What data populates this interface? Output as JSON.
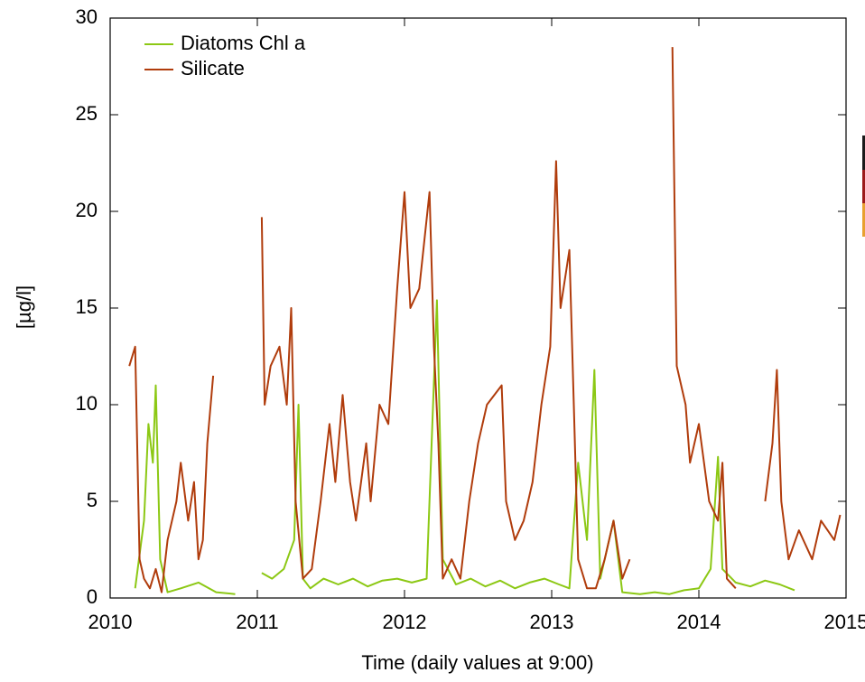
{
  "chart_data": {
    "type": "line",
    "xlabel": "Time (daily values at 9:00)",
    "ylabel": "[µg/l]",
    "xlim": [
      2010,
      2015
    ],
    "xticks": [
      2010,
      2011,
      2012,
      2013,
      2014,
      2015
    ],
    "ylim": [
      0,
      30
    ],
    "yticks": [
      0,
      5,
      10,
      15,
      20,
      25,
      30
    ],
    "legend": "top-left",
    "series": [
      {
        "name": "Diatoms Chl a",
        "color": "#8cc814",
        "x": [
          2010.17,
          2010.23,
          2010.26,
          2010.29,
          2010.31,
          2010.34,
          2010.39,
          2010.48,
          2010.6,
          2010.72,
          2010.85,
          2010.95,
          2011.03,
          2011.1,
          2011.18,
          2011.25,
          2011.28,
          2011.31,
          2011.36,
          2011.45,
          2011.55,
          2011.65,
          2011.75,
          2011.85,
          2011.95,
          2012.05,
          2012.15,
          2012.22,
          2012.26,
          2012.35,
          2012.45,
          2012.55,
          2012.65,
          2012.75,
          2012.85,
          2012.95,
          2013.05,
          2013.12,
          2013.18,
          2013.24,
          2013.29,
          2013.33,
          2013.42,
          2013.48,
          2013.6,
          2013.7,
          2013.8,
          2013.9,
          2014.0,
          2014.08,
          2014.13,
          2014.16,
          2014.25,
          2014.35,
          2014.45,
          2014.55,
          2014.65
        ],
        "values": [
          0.5,
          4,
          9,
          7,
          11,
          2,
          0.3,
          0.5,
          0.8,
          0.3,
          0.2,
          null,
          1.3,
          1,
          1.5,
          3,
          10,
          1,
          0.5,
          1,
          0.7,
          1,
          0.6,
          0.9,
          1,
          0.8,
          1,
          15.4,
          2,
          0.7,
          1,
          0.6,
          0.9,
          0.5,
          0.8,
          1,
          0.7,
          0.5,
          7,
          3,
          11.8,
          1,
          4,
          0.3,
          0.2,
          0.3,
          0.2,
          0.4,
          0.5,
          1.5,
          7.3,
          1.5,
          0.8,
          0.6,
          0.9,
          0.7,
          0.4
        ]
      },
      {
        "name": "Silicate",
        "color": "#b03c0c",
        "x": [
          2010.13,
          2010.17,
          2010.2,
          2010.23,
          2010.27,
          2010.31,
          2010.35,
          2010.39,
          2010.45,
          2010.48,
          2010.53,
          2010.57,
          2010.6,
          2010.63,
          2010.66,
          2010.7,
          2010.85,
          2011.03,
          2011.05,
          2011.09,
          2011.15,
          2011.2,
          2011.23,
          2011.26,
          2011.31,
          2011.37,
          2011.43,
          2011.49,
          2011.53,
          2011.58,
          2011.63,
          2011.67,
          2011.74,
          2011.77,
          2011.83,
          2011.89,
          2011.95,
          2012.0,
          2012.04,
          2012.1,
          2012.17,
          2012.2,
          2012.23,
          2012.26,
          2012.32,
          2012.38,
          2012.44,
          2012.5,
          2012.56,
          2012.66,
          2012.69,
          2012.75,
          2012.81,
          2012.87,
          2012.93,
          2012.99,
          2013.03,
          2013.06,
          2013.12,
          2013.15,
          2013.18,
          2013.24,
          2013.3,
          2013.36,
          2013.42,
          2013.48,
          2013.53,
          2013.7,
          2013.82,
          2013.85,
          2013.91,
          2013.94,
          2014.0,
          2014.07,
          2014.13,
          2014.16,
          2014.19,
          2014.25,
          2014.35,
          2014.45,
          2014.5,
          2014.53,
          2014.56,
          2014.61,
          2014.68,
          2014.77,
          2014.83,
          2014.92,
          2014.96
        ],
        "values": [
          12,
          13,
          2,
          1,
          0.5,
          1.5,
          0.3,
          3,
          5,
          7,
          4,
          6,
          2,
          3,
          8,
          11.5,
          null,
          19.7,
          10,
          12,
          13,
          10,
          15,
          5,
          1,
          1.5,
          5,
          9,
          6,
          10.5,
          6,
          4,
          8,
          5,
          10,
          9,
          16,
          21,
          15,
          16,
          21,
          13,
          8,
          1,
          2,
          1,
          5,
          8,
          10,
          11,
          5,
          3,
          4,
          6,
          10,
          13,
          22.6,
          15,
          18,
          10,
          2,
          0.5,
          0.5,
          2,
          4,
          1,
          2,
          null,
          28.5,
          12,
          10,
          7,
          9,
          5,
          4,
          7,
          1,
          0.5,
          null,
          5,
          8,
          11.8,
          5,
          2,
          3.5,
          2,
          4,
          3,
          4.3
        ]
      }
    ]
  }
}
